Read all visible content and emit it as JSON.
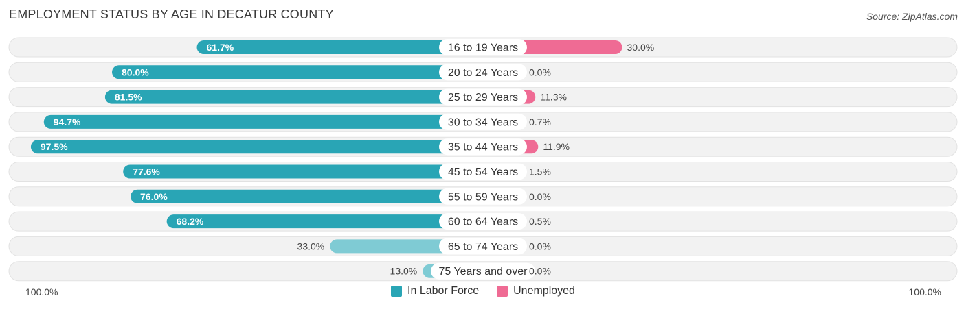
{
  "header": {
    "title": "EMPLOYMENT STATUS BY AGE IN DECATUR COUNTY",
    "source": "Source: ZipAtlas.com"
  },
  "colors": {
    "labor_strong": "#29a5b5",
    "labor_light": "#7fcbd4",
    "unemp_strong": "#ef6b94",
    "unemp_light": "#f6b1c7",
    "row_bg": "#f2f2f2",
    "row_border": "#e2e2e2"
  },
  "legend": {
    "labor_label": "In Labor Force",
    "unemp_label": "Unemployed"
  },
  "axis": {
    "left_label": "100.0%",
    "right_label": "100.0%"
  },
  "chart_data": {
    "type": "bar",
    "title": "EMPLOYMENT STATUS BY AGE IN DECATUR COUNTY",
    "categories": [
      "16 to 19 Years",
      "20 to 24 Years",
      "25 to 29 Years",
      "30 to 34 Years",
      "35 to 44 Years",
      "45 to 54 Years",
      "55 to 59 Years",
      "60 to 64 Years",
      "65 to 74 Years",
      "75 Years and over"
    ],
    "series": [
      {
        "name": "In Labor Force",
        "values": [
          61.7,
          80.0,
          81.5,
          94.7,
          97.5,
          77.6,
          76.0,
          68.2,
          33.0,
          13.0
        ]
      },
      {
        "name": "Unemployed",
        "values": [
          30.0,
          0.0,
          11.3,
          0.7,
          11.9,
          1.5,
          0.0,
          0.5,
          0.0,
          0.0
        ]
      }
    ],
    "labels_labor": [
      "61.7%",
      "80.0%",
      "81.5%",
      "94.7%",
      "97.5%",
      "77.6%",
      "76.0%",
      "68.2%",
      "33.0%",
      "13.0%"
    ],
    "labels_unemp": [
      "30.0%",
      "0.0%",
      "11.3%",
      "0.7%",
      "11.9%",
      "1.5%",
      "0.0%",
      "0.5%",
      "0.0%",
      "0.0%"
    ],
    "xlim": [
      -100,
      100
    ],
    "orientation": "horizontal-diverging"
  }
}
